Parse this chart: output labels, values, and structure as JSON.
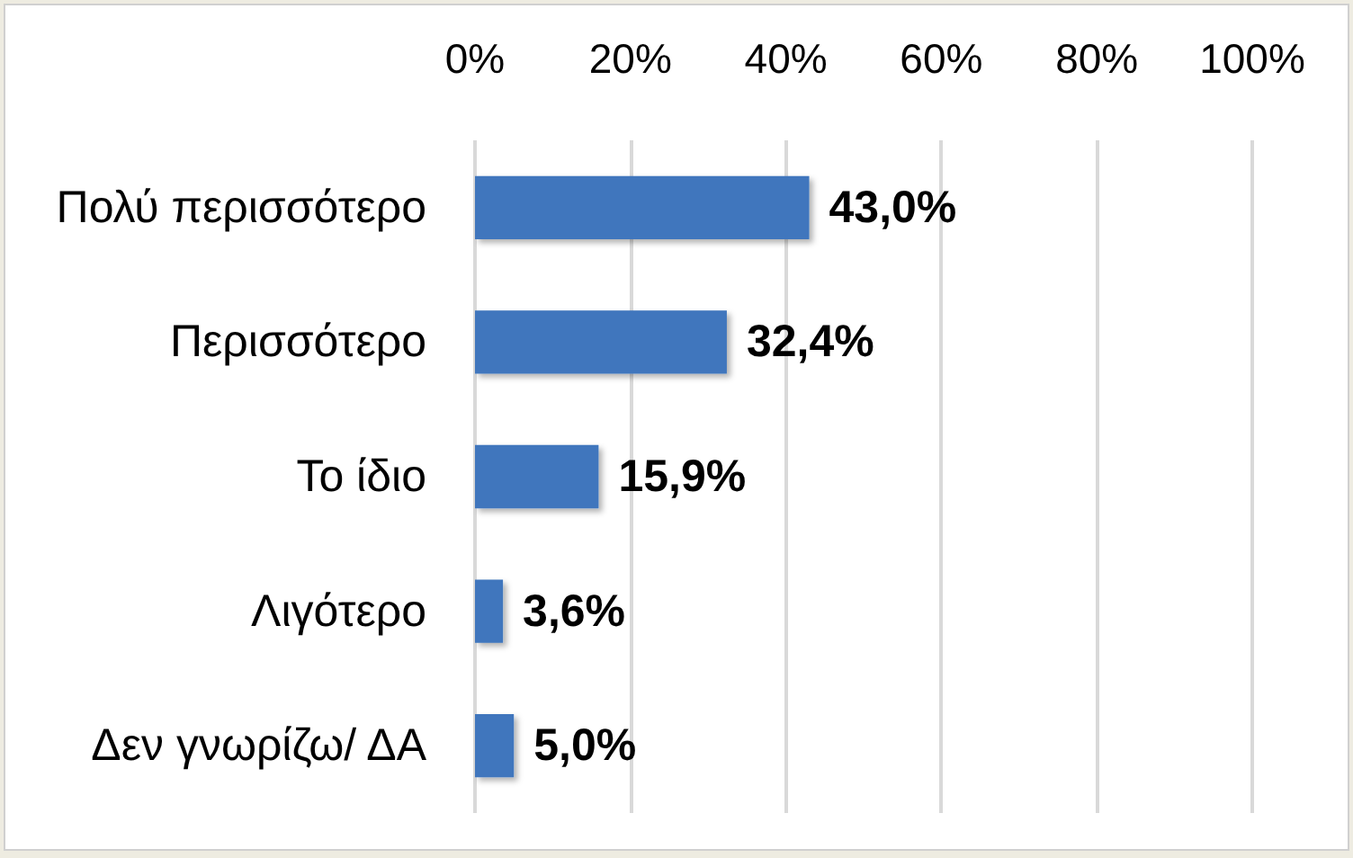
{
  "chart_data": {
    "type": "bar",
    "orientation": "horizontal",
    "categories": [
      "Πολύ περισσότερο",
      "Περισσότερο",
      "Το ίδιο",
      "Λιγότερο",
      "Δεν γνωρίζω/ ΔΑ"
    ],
    "values": [
      43.0,
      32.4,
      15.9,
      3.6,
      5.0
    ],
    "value_labels": [
      "43,0%",
      "32,4%",
      "15,9%",
      "3,6%",
      "5,0%"
    ],
    "color": "#3f76bd",
    "xlim": [
      0,
      100
    ],
    "xticks": [
      {
        "value": 0,
        "label": "0%"
      },
      {
        "value": 20,
        "label": "20%"
      },
      {
        "value": 40,
        "label": "40%"
      },
      {
        "value": 60,
        "label": "60%"
      },
      {
        "value": 80,
        "label": "80%"
      },
      {
        "value": 100,
        "label": "100%"
      }
    ],
    "grid": "x"
  }
}
